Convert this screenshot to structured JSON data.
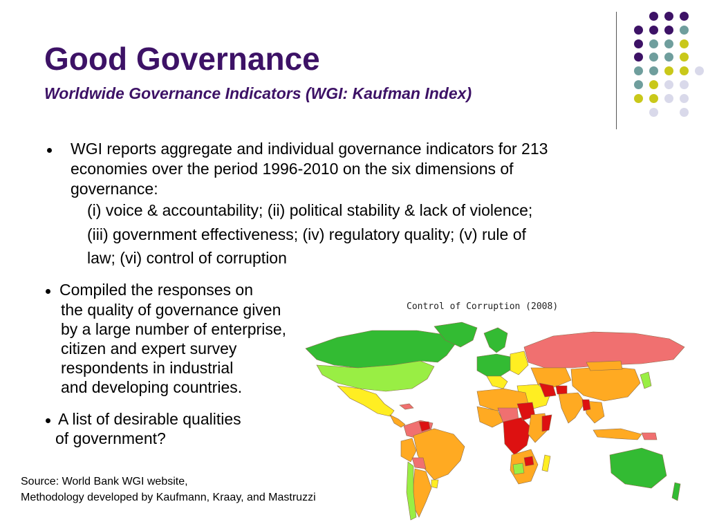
{
  "slide": {
    "title": "Good Governance",
    "subtitle": "Worldwide Governance Indicators (WGI: Kaufman Index)"
  },
  "bullets": {
    "b1_lines": [
      "WGI reports aggregate and individual governance indicators for 213",
      "economies over the period 1996-2010 on the six dimensions of",
      "governance:"
    ],
    "b1_dimensions": [
      "(i) voice & accountability; (ii) political stability & lack of violence;",
      "(iii) government effectiveness; (iv) regulatory quality; (v) rule of",
      "law; (vi) control of corruption"
    ],
    "b2_lines": [
      "Compiled the responses on",
      "the quality of governance given",
      "by a large number of enterprise,",
      "citizen and expert survey",
      "respondents in industrial",
      "and developing countries."
    ],
    "b3_lines": [
      "A list of desirable qualities",
      "of government?"
    ]
  },
  "map": {
    "title": "Control of Corruption (2008)",
    "colors": {
      "very_strong": "#33bb33",
      "strong": "#99ee44",
      "moderate": "#ffee22",
      "weak": "#ffaa22",
      "very_weak": "#f07070",
      "worst": "#dd1111",
      "no_data": "#bbbbbb"
    }
  },
  "source": {
    "line1": "Source: World Bank WGI website,",
    "line2": "Methodology developed by Kaufmann, Kraay, and Mastruzzi"
  },
  "decor": {
    "dot_colors": {
      "purple": "#3d1266",
      "teal": "#6f9e9d",
      "olive": "#c9c81a",
      "lavender": "#d9d9ea"
    }
  }
}
